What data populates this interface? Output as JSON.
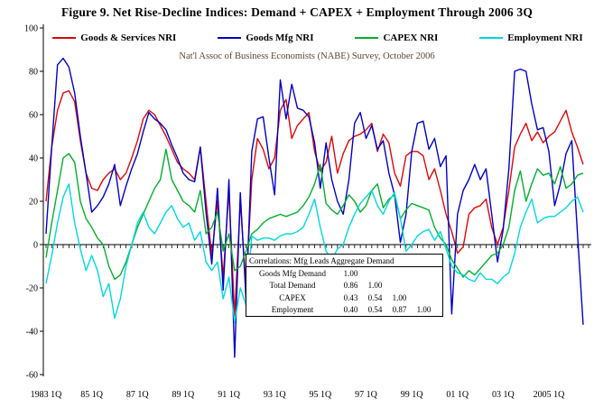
{
  "figure": {
    "title": "Figure 9. Net Rise-Decline Indices: Demand + CAPEX + Employment Through 2006 3Q",
    "subtitle": "Nat'l Assoc of Business Economists (NABE) Survey, October 2006"
  },
  "colors": {
    "goods_services": "#dd0806",
    "goods_mfg": "#0000c8",
    "capex": "#00b02d",
    "employment": "#00d8e0",
    "axis": "#000000"
  },
  "correlation_table": {
    "title": "Correlations: Mfg Leads Aggregate Demand",
    "rows": [
      {
        "label": "Goods Mfg Demand",
        "values": [
          "1.00",
          "",
          "",
          ""
        ]
      },
      {
        "label": "Total Demand",
        "values": [
          "0.86",
          "1.00",
          "",
          ""
        ]
      },
      {
        "label": "CAPEX",
        "values": [
          "0.43",
          "0.54",
          "1.00",
          ""
        ]
      },
      {
        "label": "Employment",
        "values": [
          "0.40",
          "0.54",
          "0.87",
          "1.00"
        ]
      }
    ]
  },
  "chart_data": {
    "type": "line",
    "title": "Figure 9. Net Rise-Decline Indices: Demand + CAPEX + Employment Through 2006 3Q",
    "xlabel": "",
    "ylabel": "",
    "ylim": [
      -60,
      100
    ],
    "y_ticks": [
      100,
      80,
      60,
      40,
      20,
      0,
      -20,
      -40,
      -60
    ],
    "grid": false,
    "legend_position": "top",
    "x_tick_labels": [
      "1983 1Q",
      "85 1Q",
      "87 1Q",
      "89 1Q",
      "91 1Q",
      "93 1Q",
      "95 1Q",
      "97 1Q",
      "99 1Q",
      "01 1Q",
      "03 1Q",
      "2005 1Q"
    ],
    "x_tick_every": 8,
    "x": [
      "1983Q1",
      "1983Q2",
      "1983Q3",
      "1983Q4",
      "1984Q1",
      "1984Q2",
      "1984Q3",
      "1984Q4",
      "1985Q1",
      "1985Q2",
      "1985Q3",
      "1985Q4",
      "1986Q1",
      "1986Q2",
      "1986Q3",
      "1986Q4",
      "1987Q1",
      "1987Q2",
      "1987Q3",
      "1987Q4",
      "1988Q1",
      "1988Q2",
      "1988Q3",
      "1988Q4",
      "1989Q1",
      "1989Q2",
      "1989Q3",
      "1989Q4",
      "1990Q1",
      "1990Q2",
      "1990Q3",
      "1990Q4",
      "1991Q1",
      "1991Q2",
      "1991Q3",
      "1991Q4",
      "1992Q1",
      "1992Q2",
      "1992Q3",
      "1992Q4",
      "1993Q1",
      "1993Q2",
      "1993Q3",
      "1993Q4",
      "1994Q1",
      "1994Q2",
      "1994Q3",
      "1994Q4",
      "1995Q1",
      "1995Q2",
      "1995Q3",
      "1995Q4",
      "1996Q1",
      "1996Q2",
      "1996Q3",
      "1996Q4",
      "1997Q1",
      "1997Q2",
      "1997Q3",
      "1997Q4",
      "1998Q1",
      "1998Q2",
      "1998Q3",
      "1998Q4",
      "1999Q1",
      "1999Q2",
      "1999Q3",
      "1999Q4",
      "2000Q1",
      "2000Q2",
      "2000Q3",
      "2000Q4",
      "2001Q1",
      "2001Q2",
      "2001Q3",
      "2001Q4",
      "2002Q1",
      "2002Q2",
      "2002Q3",
      "2002Q4",
      "2003Q1",
      "2003Q2",
      "2003Q3",
      "2003Q4",
      "2004Q1",
      "2004Q2",
      "2004Q3",
      "2004Q4",
      "2005Q1",
      "2005Q2",
      "2005Q3",
      "2005Q4",
      "2006Q1",
      "2006Q2",
      "2006Q3"
    ],
    "series": [
      {
        "name": "Goods & Services NRI",
        "color": "#dd0806",
        "values": [
          20,
          45,
          62,
          70,
          71,
          66,
          48,
          33,
          26,
          25,
          30,
          33,
          35,
          30,
          33,
          40,
          48,
          58,
          62,
          60,
          55,
          50,
          44,
          38,
          35,
          33,
          30,
          45,
          20,
          -5,
          20,
          -15,
          25,
          -33,
          20,
          -20,
          30,
          49,
          44,
          35,
          40,
          62,
          67,
          49,
          55,
          58,
          61,
          43,
          34,
          38,
          50,
          33,
          42,
          48,
          50,
          51,
          53,
          56,
          43,
          51,
          47,
          33,
          27,
          41,
          43,
          43,
          41,
          30,
          35,
          25,
          14,
          6,
          -4,
          -1,
          14,
          17,
          18,
          21,
          8,
          0,
          8,
          25,
          45,
          51,
          56,
          48,
          52,
          47,
          50,
          52,
          57,
          62,
          52,
          45,
          37
        ]
      },
      {
        "name": "Goods Mfg NRI",
        "color": "#0000c8",
        "values": [
          5,
          45,
          83,
          86,
          82,
          70,
          50,
          33,
          15,
          18,
          22,
          28,
          37,
          18,
          27,
          35,
          42,
          52,
          61,
          58,
          56,
          53,
          46,
          40,
          33,
          30,
          29,
          45,
          15,
          -9,
          26,
          -21,
          30,
          -52,
          24,
          -26,
          43,
          58,
          59,
          40,
          23,
          76,
          58,
          74,
          63,
          62,
          59,
          47,
          26,
          47,
          30,
          20,
          14,
          30,
          56,
          61,
          49,
          55,
          44,
          48,
          33,
          23,
          1,
          14,
          43,
          56,
          57,
          44,
          49,
          36,
          41,
          -32,
          14,
          25,
          30,
          37,
          30,
          35,
          14,
          -8,
          7,
          35,
          80,
          81,
          80,
          65,
          53,
          54,
          43,
          18,
          28,
          42,
          48,
          5,
          -37
        ]
      },
      {
        "name": "CAPEX NRI",
        "color": "#00b02d",
        "values": [
          -6,
          10,
          25,
          40,
          42,
          38,
          20,
          12,
          8,
          3,
          0,
          -10,
          -16,
          -14,
          -8,
          0,
          8,
          14,
          20,
          26,
          30,
          44,
          30,
          25,
          20,
          18,
          15,
          25,
          5,
          8,
          15,
          -3,
          5,
          -12,
          -10,
          -3,
          5,
          7,
          10,
          12,
          13,
          14,
          13,
          14,
          15,
          18,
          22,
          28,
          37,
          19,
          16,
          14,
          18,
          23,
          20,
          15,
          18,
          25,
          28,
          17,
          21,
          23,
          12,
          16,
          19,
          18,
          17,
          16,
          8,
          3,
          0,
          -7,
          -11,
          -15,
          -12,
          -14,
          -11,
          -8,
          -5,
          -4,
          0,
          8,
          25,
          34,
          20,
          28,
          35,
          32,
          33,
          28,
          36,
          26,
          28,
          32,
          33
        ]
      },
      {
        "name": "Employment NRI",
        "color": "#00d8e0",
        "values": [
          -18,
          -5,
          10,
          22,
          28,
          10,
          -2,
          -12,
          -5,
          -12,
          -24,
          -18,
          -34,
          -25,
          -10,
          0,
          10,
          15,
          8,
          5,
          10,
          15,
          18,
          12,
          8,
          10,
          2,
          6,
          -8,
          -12,
          -8,
          -25,
          -15,
          -36,
          -20,
          -28,
          4,
          2,
          3,
          3,
          2,
          4,
          5,
          5,
          6,
          8,
          14,
          21,
          8,
          -3,
          -7,
          -2,
          0,
          8,
          14,
          19,
          22,
          25,
          18,
          14,
          20,
          24,
          12,
          -3,
          0,
          4,
          6,
          7,
          2,
          6,
          -2,
          -10,
          -13,
          -14,
          -16,
          -17,
          -13,
          -16,
          -16,
          -18,
          -15,
          -13,
          -4,
          8,
          15,
          21,
          10,
          12,
          13,
          13,
          15,
          17,
          20,
          22,
          15
        ]
      }
    ]
  }
}
